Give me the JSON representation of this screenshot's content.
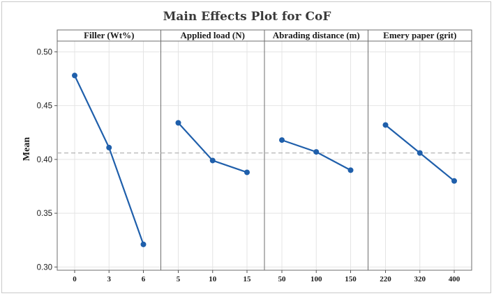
{
  "chart_data": {
    "type": "line",
    "title": "Main Effects Plot for CoF",
    "ylabel": "Mean",
    "ylim": [
      0.3,
      0.5
    ],
    "yticks": [
      "0.30",
      "0.35",
      "0.40",
      "0.45",
      "0.50"
    ],
    "yticks_values": [
      0.3,
      0.35,
      0.4,
      0.45,
      0.5
    ],
    "mean_line": 0.406,
    "grid": true,
    "colors": {
      "series": "#1f5fab",
      "ref_line": "#b4b4b4",
      "grid": "#e4e4e4"
    },
    "panels": [
      {
        "label": "Filler (Wt%)",
        "categories": [
          "0",
          "3",
          "6"
        ],
        "values": [
          0.478,
          0.411,
          0.321
        ]
      },
      {
        "label": "Applied load (N)",
        "categories": [
          "5",
          "10",
          "15"
        ],
        "values": [
          0.434,
          0.399,
          0.388
        ]
      },
      {
        "label": "Abrading distance (m)",
        "categories": [
          "50",
          "100",
          "150"
        ],
        "values": [
          0.418,
          0.407,
          0.39
        ]
      },
      {
        "label": "Emery paper (grit)",
        "categories": [
          "220",
          "320",
          "400"
        ],
        "values": [
          0.432,
          0.406,
          0.38
        ]
      }
    ]
  }
}
